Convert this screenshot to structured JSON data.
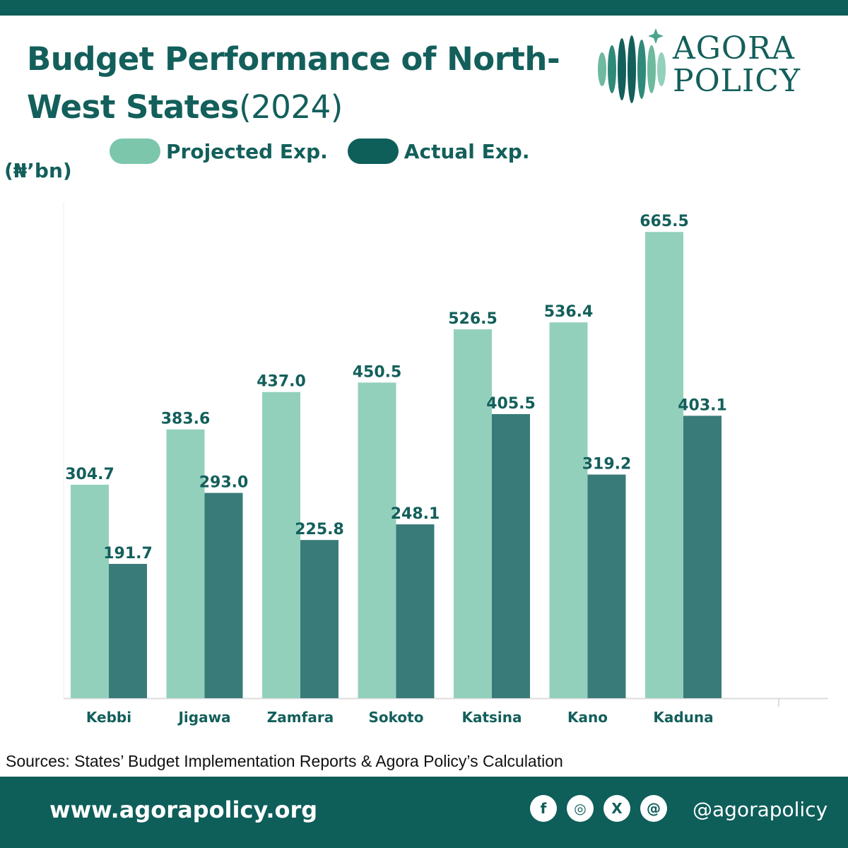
{
  "header": {
    "title_main": "Budget Performance of North-West States",
    "title_year": "(2024)"
  },
  "logo": {
    "line1": "AGORA",
    "line2": "POLICY"
  },
  "colors": {
    "primary": "#0e5e5a",
    "projected": "#93d0bb",
    "actual": "#397b78",
    "label": "#135f5b"
  },
  "chart_data": {
    "type": "bar",
    "title": "Budget Performance of North-West States(2024)",
    "ylabel": "(₦’bn)",
    "xlabel": "",
    "categories": [
      "Kebbi",
      "Jigawa",
      "Zamfara",
      "Sokoto",
      "Katsina",
      "Kano",
      "Kaduna"
    ],
    "series": [
      {
        "name": "Projected Exp.",
        "values": [
          304.7,
          383.6,
          437.0,
          450.5,
          526.5,
          536.4,
          665.5
        ]
      },
      {
        "name": "Actual Exp.",
        "values": [
          191.7,
          293.0,
          225.8,
          248.1,
          405.5,
          319.2,
          403.1
        ]
      }
    ],
    "ylim": [
      0,
      700
    ],
    "legend": "top",
    "grid": false
  },
  "source_text": "Sources: States’ Budget Implementation Reports & Agora Policy’s Calculation",
  "footer": {
    "website": "www.agorapolicy.org",
    "handle": "@agorapolicy",
    "socials": [
      {
        "icon": "facebook-icon",
        "glyph": "f"
      },
      {
        "icon": "instagram-icon",
        "glyph": "◎"
      },
      {
        "icon": "x-icon",
        "glyph": "X"
      },
      {
        "icon": "threads-icon",
        "glyph": "@"
      }
    ]
  }
}
